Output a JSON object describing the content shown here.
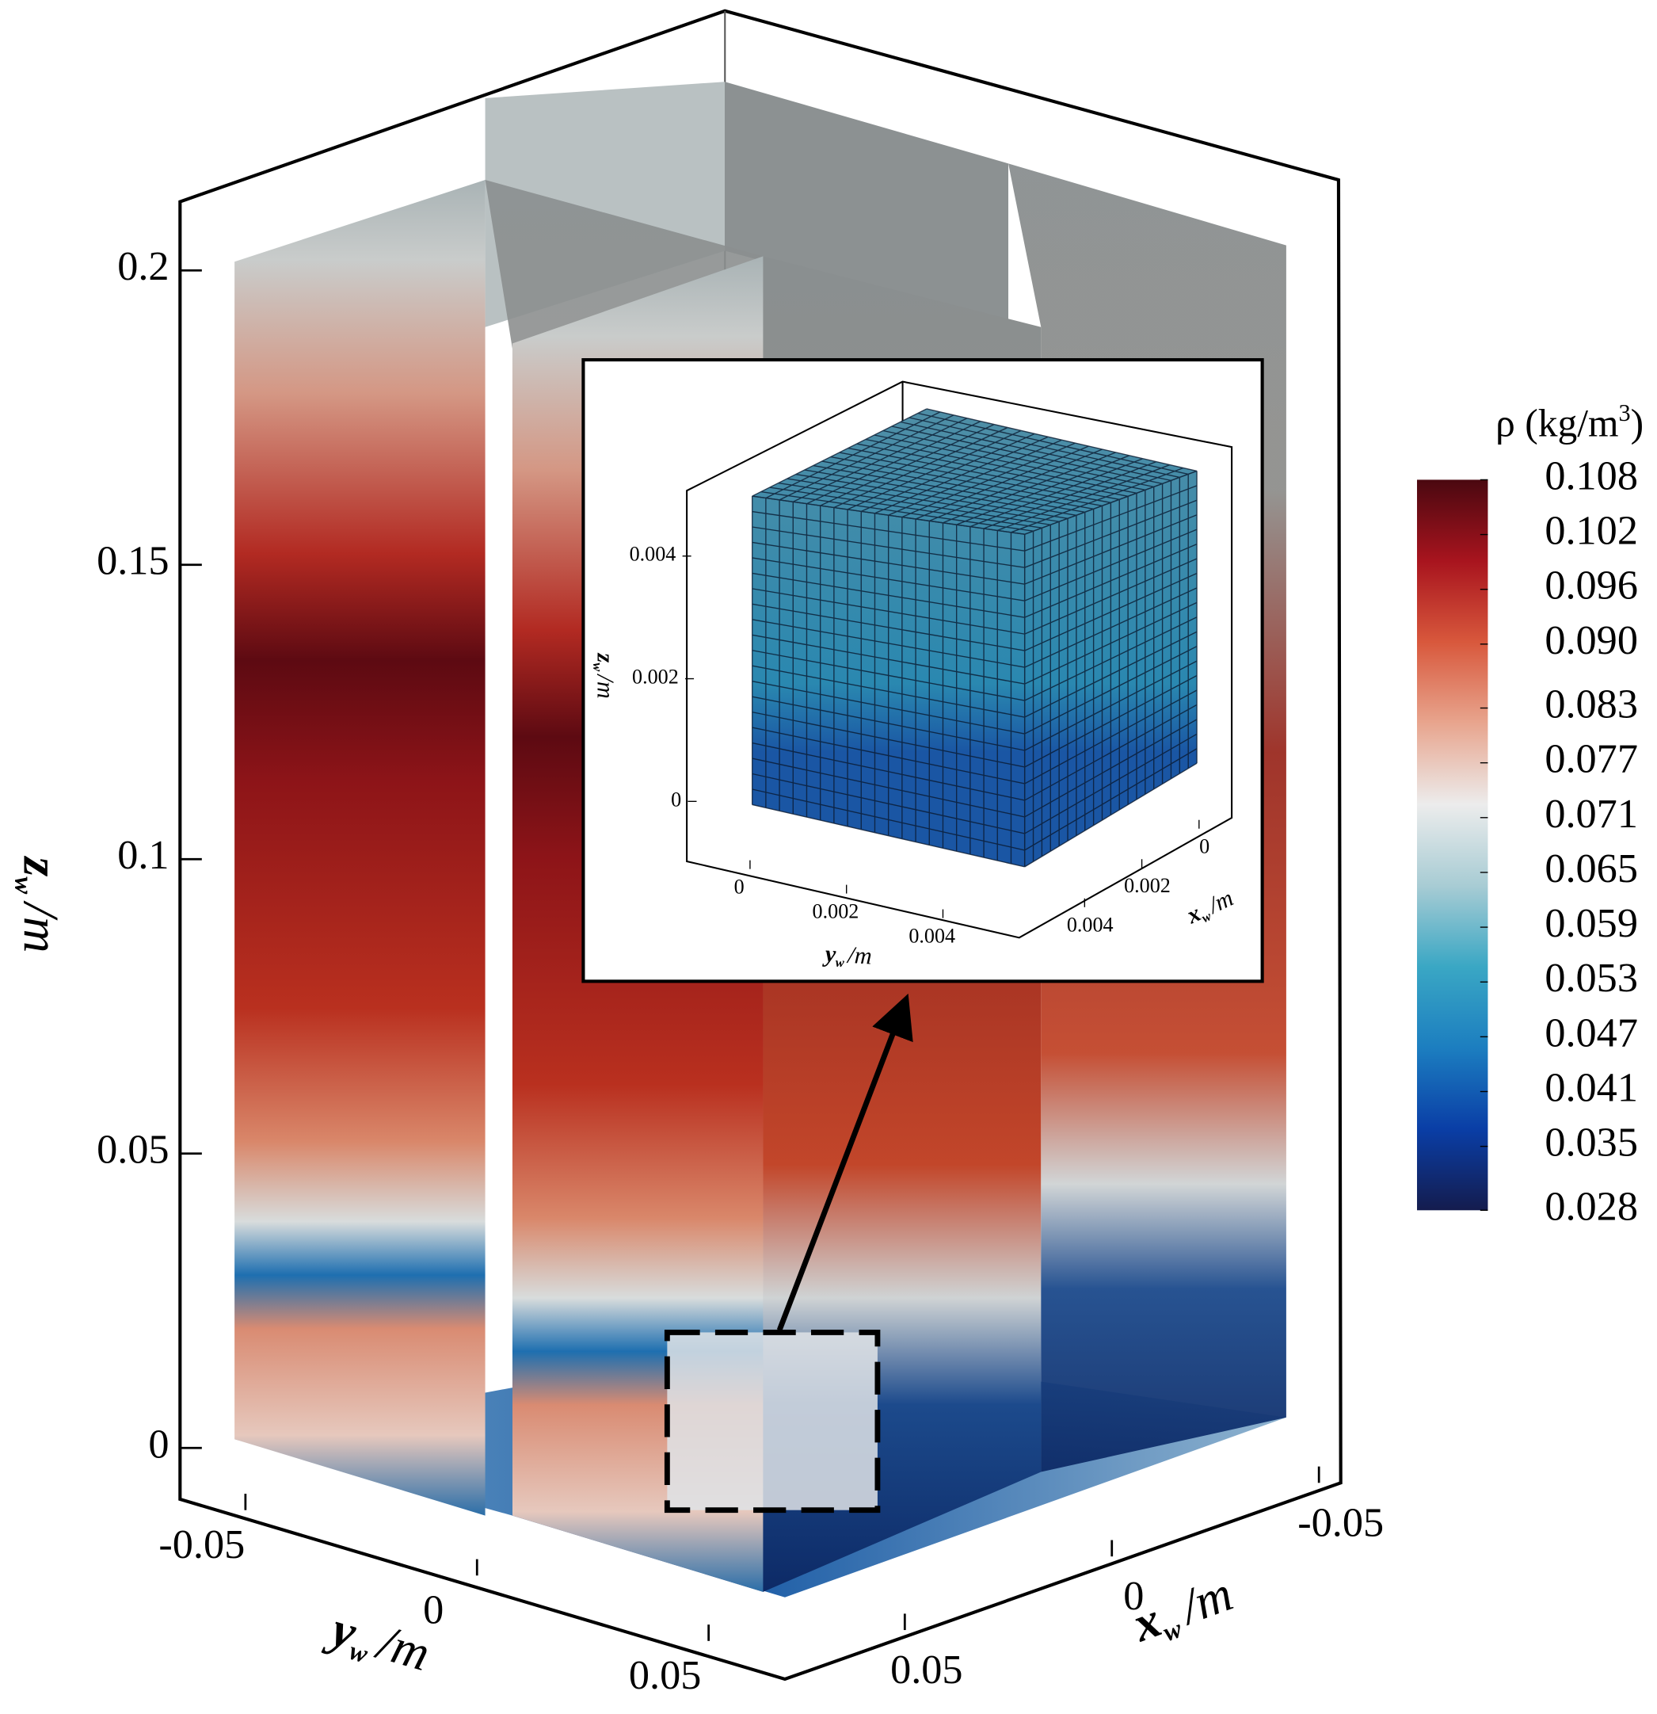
{
  "chart_data": {
    "type": "contour3d",
    "axes": {
      "x": {
        "symbol": "x",
        "subscript": "w",
        "unit": "/m",
        "ticks": [
          -0.05,
          0,
          0.05
        ]
      },
      "y": {
        "symbol": "y",
        "subscript": "w",
        "unit": "/m",
        "ticks": [
          -0.05,
          0,
          0.05
        ]
      },
      "z": {
        "symbol": "z",
        "subscript": "w",
        "unit": "/m",
        "ticks": [
          0,
          0.05,
          0.1,
          0.15,
          0.2
        ]
      }
    },
    "inset": {
      "x": {
        "symbol": "x",
        "subscript": "w",
        "unit": "/m",
        "ticks": [
          0,
          0.002,
          0.004
        ]
      },
      "y": {
        "symbol": "y",
        "subscript": "w",
        "unit": "/m",
        "ticks": [
          0,
          0.002,
          0.004
        ]
      },
      "z": {
        "symbol": "z",
        "subscript": "w",
        "unit": "/m",
        "ticks": [
          0,
          0.002,
          0.004
        ]
      }
    },
    "colorbar": {
      "title": "ρ (kg/m",
      "title_sup": "3",
      "title_end": ")",
      "clim": [
        0.028,
        0.108
      ],
      "colors": [
        "#141c4e",
        "#0a3ea6",
        "#1c7ec0",
        "#3aa7c4",
        "#a8ccd4",
        "#ececec",
        "#e8a58e",
        "#d8583c",
        "#a8141e",
        "#4a0810"
      ],
      "ticks": [
        0.028,
        0.035,
        0.041,
        0.047,
        0.053,
        0.059,
        0.065,
        0.071,
        0.077,
        0.083,
        {
          "value": 0.09,
          "label": "0.090"
        },
        0.096,
        0.102,
        0.108
      ]
    }
  }
}
